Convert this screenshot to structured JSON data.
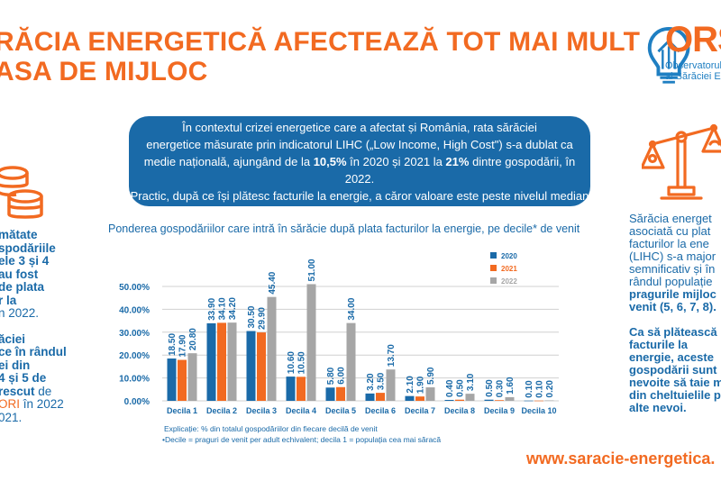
{
  "header": {
    "title_line1": "RĂCIA ENERGETICĂ AFECTEAZĂ TOT MAI MULT",
    "title_line2": "ASA DE MIJLOC"
  },
  "logo": {
    "name": "ORS",
    "subtitle_line1": "Observatorul R",
    "subtitle_line2": "al Sărăciei Ene",
    "icon": "lightbulb-house-icon"
  },
  "intro": {
    "line1": "În contextul crizei energetice care a afectat și România, rata sărăciei",
    "line2": "energetice  măsurate prin indicatorul LIHC („Low Income, High Cost\") s-a dublat ca",
    "line3_a": "medie națională, ajungând de la ",
    "line3_b": "10,5%",
    "line3_c": " în 2020 și 2021 la ",
    "line3_d": "21%",
    "line3_e": " dintre gospodării, în 2022.",
    "line4": "Practic, după ce își plătesc facturile la energie, a căror valoare este peste nivelul median",
    "line5": "național, aceste gospodării cad sub pragul de sărăcie."
  },
  "left_panel": {
    "icon": "coins-icon",
    "p1": [
      "mătate",
      "spodăriile",
      "ele 3 și 4",
      "au fost",
      "de plata",
      "r la"
    ],
    "p1_end": "n 2022.",
    "p2": [
      "ăciei",
      "ce în rândul",
      "ei din",
      "4 și 5 de"
    ],
    "p2_l5a": "rescut",
    "p2_l5b": " de",
    "p2_l6a": "ORI",
    "p2_l6b": " în 2022",
    "p2_l7": "021."
  },
  "right_panel": {
    "icon": "balance-scale-icon",
    "p1": [
      "Sărăcia energet",
      "asociată cu plat",
      "facturilor la ene",
      "(LIHC) s-a major",
      "semnificativ și în",
      "rândul populație"
    ],
    "p1_bold": [
      "pragurile mijloc",
      "venit (5, 6, 7, 8)."
    ],
    "p2": [
      "Ca să plătească",
      "facturile la",
      "energie, aceste"
    ],
    "p2_bold": [
      "gospodării sunt",
      "nevoite să taie m",
      "din cheltuielile p",
      "alte nevoi."
    ]
  },
  "chart_data": {
    "type": "bar",
    "title": "Ponderea gospodăriilor care intră în sărăcie după plata facturilor la energie, pe decile* de venit",
    "xlabel": "",
    "ylabel": "",
    "ylim": [
      0,
      50
    ],
    "yticks": [
      "0.00%",
      "10.00%",
      "20.00%",
      "30.00%",
      "40.00%",
      "50.00%"
    ],
    "ytick_values": [
      0,
      10,
      20,
      30,
      40,
      50
    ],
    "grid": true,
    "legend_position": "top-right",
    "categories": [
      "Decila 1",
      "Decila 2",
      "Decila 3",
      "Decila 4",
      "Decila 5",
      "Decila 6",
      "Decila 7",
      "Decila 8",
      "Decila 9",
      "Decila 10"
    ],
    "series": [
      {
        "name": "2020",
        "color": "#1a6aa8",
        "values": [
          18.5,
          33.9,
          30.5,
          10.6,
          5.8,
          3.2,
          2.1,
          0.4,
          0.5,
          0.1
        ],
        "labels": [
          "18.50",
          "33.90",
          "30.50",
          "10.60",
          "5.80",
          "3.20",
          "2.10",
          "0.40",
          "0.50",
          "0.10"
        ]
      },
      {
        "name": "2021",
        "color": "#f26a21",
        "values": [
          17.9,
          34.1,
          29.9,
          10.5,
          6.0,
          3.5,
          1.9,
          0.5,
          0.3,
          0.1
        ],
        "labels": [
          "17.90",
          "34.10",
          "29.90",
          "10.50",
          "6.00",
          "3.50",
          "1.90",
          "0.50",
          "0.30",
          "0.10"
        ]
      },
      {
        "name": "2022",
        "color": "#a6a6a6",
        "values": [
          20.8,
          34.2,
          45.4,
          51.0,
          34.0,
          13.7,
          5.9,
          3.1,
          1.6,
          0.2
        ],
        "labels": [
          "20.80",
          "34.20",
          "45.40",
          "51.00",
          "34.00",
          "13.70",
          "5.90",
          "3.10",
          "1.60",
          "0.20"
        ]
      }
    ],
    "footnote1": "Explicație: % din totalul gospodăriilor din fiecare decilă de venit",
    "footnote2": "•Decile = praguri de venit per adult echivalent; decila 1 = populația cea mai săracă"
  },
  "footer": {
    "url": "www.saracie-energetica."
  }
}
